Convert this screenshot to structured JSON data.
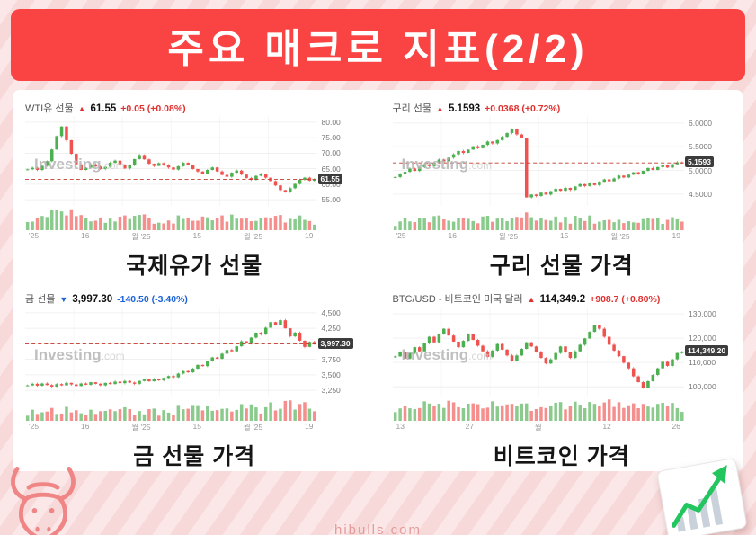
{
  "page": {
    "title": "주요 매크로 지표(2/2)",
    "footer": "hibulls.com"
  },
  "colors": {
    "banner": "#fa4343",
    "up_text": "#e03131",
    "down_text": "#1c63d6",
    "candle_up": "#4caf50",
    "candle_down": "#ef5350",
    "tag_bg": "#3c3c3c"
  },
  "chart_data": [
    {
      "type": "candlestick",
      "name": "WTI유 선물",
      "arrow": "▲",
      "direction": "up",
      "price_label": "61.55",
      "change_label": "+0.05 (+0.08%)",
      "caption": "국제유가 선물",
      "watermark_bold": "Investing",
      "watermark_light": ".com",
      "ylim": [
        53,
        82
      ],
      "y_ticks": [
        {
          "value": 80,
          "label": "80.00"
        },
        {
          "value": 75,
          "label": "75.00"
        },
        {
          "value": 70,
          "label": "70.00"
        },
        {
          "value": 65,
          "label": "65.00"
        },
        {
          "value": 60,
          "label": "60.00"
        },
        {
          "value": 55,
          "label": "55.00"
        }
      ],
      "x_labels": [
        "'25",
        "16",
        "월 '25",
        "15",
        "월 '25",
        "19"
      ],
      "last": {
        "value": 61.55,
        "label": "61.55"
      },
      "closes": [
        64.8,
        65.3,
        64.6,
        65.9,
        67.4,
        71.2,
        75.5,
        78.6,
        74.2,
        69.8,
        66.4,
        64.6,
        65.3,
        66.4,
        65.7,
        64.9,
        65.6,
        66.9,
        67.6,
        66.3,
        65.1,
        66.2,
        68.1,
        69.4,
        68.0,
        66.6,
        65.9,
        66.8,
        66.1,
        65.4,
        64.7,
        65.8,
        66.9,
        66.2,
        64.9,
        64.1,
        63.4,
        64.6,
        65.4,
        64.1,
        63.0,
        62.4,
        63.7,
        64.4,
        63.1,
        62.0,
        61.4,
        62.7,
        63.3,
        62.1,
        61.0,
        59.6,
        58.1,
        57.4,
        58.7,
        60.1,
        61.4,
        62.1,
        61.1,
        61.55
      ]
    },
    {
      "type": "candlestick",
      "name": "구리 선물",
      "arrow": "▲",
      "direction": "up",
      "price_label": "5.1593",
      "change_label": "+0.0368 (+0.72%)",
      "caption": "구리 선물 가격",
      "watermark_bold": "Investing",
      "watermark_light": ".com",
      "ylim": [
        4.25,
        6.15
      ],
      "y_ticks": [
        {
          "value": 6.0,
          "label": "6.0000"
        },
        {
          "value": 5.5,
          "label": "5.5000"
        },
        {
          "value": 5.0,
          "label": "5.0000"
        },
        {
          "value": 4.5,
          "label": "4.5000"
        }
      ],
      "x_labels": [
        "'25",
        "16",
        "월 '25",
        "15",
        "월 '25",
        "19"
      ],
      "last": {
        "value": 5.1593,
        "label": "5.1593"
      },
      "closes": [
        4.86,
        4.92,
        4.97,
        5.04,
        4.99,
        5.07,
        5.13,
        5.09,
        5.16,
        5.23,
        5.19,
        5.27,
        5.34,
        5.41,
        5.37,
        5.44,
        5.51,
        5.47,
        5.54,
        5.61,
        5.57,
        5.64,
        5.71,
        5.79,
        5.87,
        5.76,
        5.69,
        4.43,
        4.49,
        4.46,
        4.53,
        4.49,
        4.56,
        4.61,
        4.57,
        4.63,
        4.59,
        4.66,
        4.71,
        4.67,
        4.73,
        4.69,
        4.76,
        4.81,
        4.77,
        4.83,
        4.89,
        4.85,
        4.91,
        4.96,
        4.93,
        4.99,
        5.05,
        5.01,
        5.07,
        5.11,
        5.06,
        5.13,
        5.17,
        5.1593
      ]
    },
    {
      "type": "candlestick",
      "name": "금 선물",
      "arrow": "▼",
      "direction": "down",
      "price_label": "3,997.30",
      "change_label": "-140.50 (-3.40%)",
      "caption": "금 선물 가격",
      "watermark_bold": "Investing",
      "watermark_light": ".com",
      "ylim": [
        3150,
        4600
      ],
      "y_ticks": [
        {
          "value": 4500,
          "label": "4,500"
        },
        {
          "value": 4250,
          "label": "4,250"
        },
        {
          "value": 4000,
          "label": "4,000"
        },
        {
          "value": 3750,
          "label": "3,750"
        },
        {
          "value": 3500,
          "label": "3,500"
        },
        {
          "value": 3250,
          "label": "3,250"
        }
      ],
      "x_labels": [
        "'25",
        "16",
        "월 '25",
        "15",
        "월 '25",
        "19"
      ],
      "last": {
        "value": 3997.3,
        "label": "3,997.30"
      },
      "closes": [
        3330,
        3355,
        3325,
        3360,
        3335,
        3310,
        3350,
        3330,
        3370,
        3345,
        3320,
        3360,
        3340,
        3380,
        3355,
        3330,
        3370,
        3350,
        3390,
        3365,
        3400,
        3375,
        3355,
        3400,
        3425,
        3395,
        3430,
        3410,
        3450,
        3480,
        3460,
        3520,
        3560,
        3540,
        3600,
        3660,
        3640,
        3720,
        3780,
        3760,
        3840,
        3900,
        3880,
        3960,
        4040,
        4010,
        4100,
        4180,
        4150,
        4260,
        4350,
        4300,
        4380,
        4250,
        4120,
        4180,
        4050,
        3950,
        4030,
        3997.3
      ]
    },
    {
      "type": "candlestick",
      "name": "BTC/USD - 비트코인 미국 달러",
      "arrow": "▲",
      "direction": "up",
      "price_label": "114,349.2",
      "change_label": "+908.7 (+0.80%)",
      "caption": "비트코인 가격",
      "watermark_bold": "Investing",
      "watermark_light": ".com",
      "ylim": [
        96000,
        133000
      ],
      "y_ticks": [
        {
          "value": 130000,
          "label": "130,000"
        },
        {
          "value": 120000,
          "label": "120,000"
        },
        {
          "value": 110000,
          "label": "110,000"
        },
        {
          "value": 100000,
          "label": "100,000"
        }
      ],
      "x_labels": [
        "13",
        "27",
        "월",
        "12",
        "26"
      ],
      "last": {
        "value": 114349.2,
        "label": "114,349.20"
      },
      "closes": [
        112500,
        114200,
        111600,
        113900,
        116300,
        114600,
        117900,
        120600,
        118300,
        121600,
        123900,
        121100,
        118600,
        116300,
        118900,
        121600,
        119300,
        116900,
        114600,
        112300,
        114900,
        117600,
        115300,
        112900,
        110600,
        112900,
        115600,
        118300,
        116600,
        114300,
        111900,
        109600,
        111300,
        113900,
        116600,
        114300,
        111900,
        114600,
        117300,
        119900,
        122600,
        125300,
        123900,
        120600,
        117300,
        114900,
        112600,
        109900,
        107600,
        104300,
        101900,
        99600,
        102300,
        104900,
        107600,
        110300,
        108600,
        111300,
        113900,
        114349.2
      ]
    }
  ]
}
